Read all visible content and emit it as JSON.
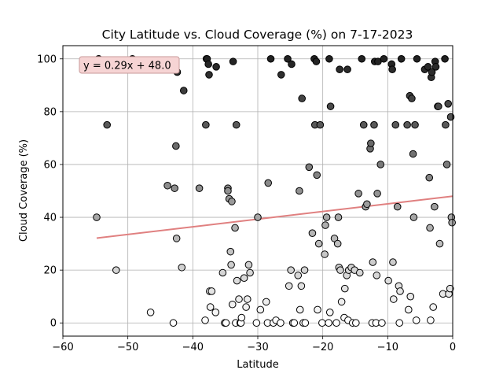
{
  "chart_data": {
    "type": "scatter",
    "title": "City Latitude vs. Cloud Coverage (%) on 7-17-2023",
    "xlabel": "Latitude",
    "ylabel": "Cloud Coverage (%)",
    "xlim": [
      -60,
      0
    ],
    "ylim": [
      -5,
      105
    ],
    "xticks": [
      -60,
      -50,
      -40,
      -30,
      -20,
      -10,
      0
    ],
    "yticks": [
      0,
      20,
      40,
      60,
      80,
      100
    ],
    "grid": true,
    "annotation": "y = 0.29x + 48.0",
    "regression": {
      "slope": 0.29,
      "intercept": 48.0,
      "x_start": -54.8,
      "x_end": 0.0,
      "color": "#e08080"
    },
    "marker_edge_color": "#000000",
    "fill_gradient": {
      "low": "#ffffff",
      "high": "#222222"
    },
    "points": [
      [
        -54.8,
        40
      ],
      [
        -54.5,
        100
      ],
      [
        -53.2,
        75
      ],
      [
        -51.8,
        20
      ],
      [
        -49.3,
        100
      ],
      [
        -46.5,
        4
      ],
      [
        -46.5,
        99
      ],
      [
        -46.5,
        98
      ],
      [
        -46.3,
        98
      ],
      [
        -45.9,
        96
      ],
      [
        -43.9,
        52
      ],
      [
        -43.0,
        0
      ],
      [
        -42.8,
        51
      ],
      [
        -42.6,
        67
      ],
      [
        -42.5,
        32
      ],
      [
        -42.4,
        95
      ],
      [
        -41.7,
        21
      ],
      [
        -41.4,
        88
      ],
      [
        -39.0,
        51
      ],
      [
        -38.1,
        1
      ],
      [
        -38.0,
        75
      ],
      [
        -37.9,
        100
      ],
      [
        -37.8,
        100
      ],
      [
        -37.6,
        98
      ],
      [
        -37.5,
        94
      ],
      [
        -37.4,
        12
      ],
      [
        -37.3,
        6
      ],
      [
        -37.1,
        12
      ],
      [
        -36.5,
        4
      ],
      [
        -36.4,
        97
      ],
      [
        -35.4,
        19
      ],
      [
        -35.1,
        0
      ],
      [
        -34.9,
        0
      ],
      [
        -34.6,
        51
      ],
      [
        -34.6,
        50
      ],
      [
        -34.4,
        47
      ],
      [
        -34.2,
        27
      ],
      [
        -34.1,
        22
      ],
      [
        -34.0,
        46
      ],
      [
        -33.9,
        7
      ],
      [
        -33.8,
        99
      ],
      [
        -33.5,
        36
      ],
      [
        -33.4,
        0
      ],
      [
        -33.3,
        75
      ],
      [
        -33.2,
        16
      ],
      [
        -32.9,
        9
      ],
      [
        -32.7,
        0
      ],
      [
        -32.6,
        0
      ],
      [
        -32.5,
        2
      ],
      [
        -32.1,
        17
      ],
      [
        -31.8,
        6
      ],
      [
        -31.6,
        9
      ],
      [
        -31.4,
        22
      ],
      [
        -31.2,
        19
      ],
      [
        -30.2,
        0
      ],
      [
        -30.0,
        40
      ],
      [
        -29.6,
        5
      ],
      [
        -28.7,
        8
      ],
      [
        -28.5,
        0
      ],
      [
        -28.4,
        53
      ],
      [
        -28.0,
        100
      ],
      [
        -27.6,
        0
      ],
      [
        -27.2,
        1
      ],
      [
        -26.5,
        0
      ],
      [
        -26.4,
        94
      ],
      [
        -25.4,
        100
      ],
      [
        -25.2,
        14
      ],
      [
        -24.9,
        20
      ],
      [
        -24.8,
        98
      ],
      [
        -24.6,
        0
      ],
      [
        -24.4,
        0
      ],
      [
        -23.8,
        18
      ],
      [
        -23.6,
        50
      ],
      [
        -23.5,
        5
      ],
      [
        -23.3,
        14
      ],
      [
        -23.2,
        85
      ],
      [
        -23.0,
        0
      ],
      [
        -22.8,
        20
      ],
      [
        -22.7,
        0
      ],
      [
        -22.1,
        59
      ],
      [
        -21.6,
        34
      ],
      [
        -21.3,
        100
      ],
      [
        -21.2,
        75
      ],
      [
        -21.0,
        99
      ],
      [
        -20.9,
        56
      ],
      [
        -20.8,
        5
      ],
      [
        -20.6,
        30
      ],
      [
        -20.4,
        75
      ],
      [
        -20.1,
        0
      ],
      [
        -19.7,
        26
      ],
      [
        -19.6,
        37
      ],
      [
        -19.4,
        40
      ],
      [
        -19.1,
        0
      ],
      [
        -19.0,
        100
      ],
      [
        -18.9,
        4
      ],
      [
        -18.8,
        82
      ],
      [
        -18.2,
        32
      ],
      [
        -17.9,
        0
      ],
      [
        -17.7,
        30
      ],
      [
        -17.6,
        40
      ],
      [
        -17.5,
        21
      ],
      [
        -17.4,
        96
      ],
      [
        -17.3,
        20
      ],
      [
        -17.1,
        8
      ],
      [
        -16.7,
        2
      ],
      [
        -16.6,
        13
      ],
      [
        -16.3,
        18
      ],
      [
        -16.2,
        96
      ],
      [
        -16.1,
        1
      ],
      [
        -16.0,
        20
      ],
      [
        -15.6,
        21
      ],
      [
        -15.4,
        0
      ],
      [
        -15.1,
        20
      ],
      [
        -14.9,
        0
      ],
      [
        -14.5,
        49
      ],
      [
        -14.3,
        19
      ],
      [
        -14.0,
        100
      ],
      [
        -13.7,
        75
      ],
      [
        -13.4,
        44
      ],
      [
        -13.2,
        45
      ],
      [
        -12.7,
        66
      ],
      [
        -12.6,
        68
      ],
      [
        -12.4,
        0
      ],
      [
        -12.3,
        23
      ],
      [
        -12.1,
        75
      ],
      [
        -12.0,
        99
      ],
      [
        -11.8,
        0
      ],
      [
        -11.7,
        18
      ],
      [
        -11.6,
        49
      ],
      [
        -11.5,
        99
      ],
      [
        -11.1,
        60
      ],
      [
        -10.9,
        0
      ],
      [
        -10.6,
        100
      ],
      [
        -9.9,
        16
      ],
      [
        -9.4,
        98
      ],
      [
        -9.3,
        96
      ],
      [
        -9.2,
        23
      ],
      [
        -9.1,
        9
      ],
      [
        -8.8,
        75
      ],
      [
        -8.5,
        44
      ],
      [
        -8.3,
        14
      ],
      [
        -8.2,
        0
      ],
      [
        -8.1,
        12
      ],
      [
        -7.9,
        100
      ],
      [
        -7.0,
        75
      ],
      [
        -6.8,
        5
      ],
      [
        -6.6,
        86
      ],
      [
        -6.5,
        10
      ],
      [
        -6.3,
        85
      ],
      [
        -6.1,
        64
      ],
      [
        -6.0,
        40
      ],
      [
        -5.8,
        75
      ],
      [
        -5.6,
        1
      ],
      [
        -5.5,
        100
      ],
      [
        -4.3,
        96
      ],
      [
        -3.8,
        97
      ],
      [
        -3.6,
        55
      ],
      [
        -3.5,
        36
      ],
      [
        -3.4,
        1
      ],
      [
        -3.3,
        93
      ],
      [
        -3.2,
        95
      ],
      [
        -3.0,
        6
      ],
      [
        -2.8,
        44
      ],
      [
        -2.7,
        99
      ],
      [
        -2.6,
        97
      ],
      [
        -2.3,
        82
      ],
      [
        -2.2,
        82
      ],
      [
        -2.0,
        30
      ],
      [
        -1.5,
        11
      ],
      [
        -1.2,
        100
      ],
      [
        -1.1,
        75
      ],
      [
        -0.9,
        60
      ],
      [
        -0.7,
        83
      ],
      [
        -0.6,
        11
      ],
      [
        -0.4,
        13
      ],
      [
        -0.3,
        78
      ],
      [
        -0.2,
        40
      ],
      [
        -0.1,
        38
      ]
    ]
  }
}
